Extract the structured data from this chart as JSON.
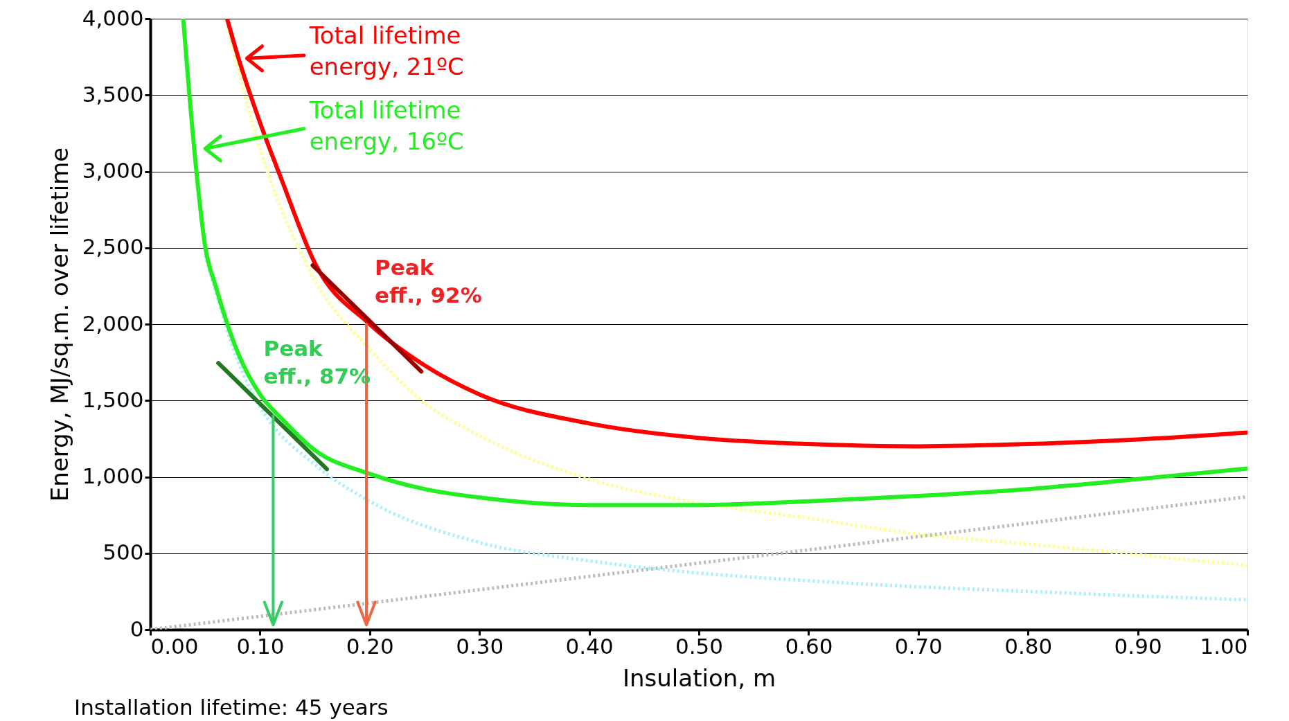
{
  "chart_data": {
    "type": "line",
    "xlabel": "Insulation, m",
    "ylabel": "Energy, MJ/sq.m. over lifetime",
    "xlim": [
      0,
      1
    ],
    "ylim": [
      0,
      4000
    ],
    "xticks": [
      {
        "value": 0,
        "label": "0.00"
      },
      {
        "value": 0.1,
        "label": "0.10"
      },
      {
        "value": 0.2,
        "label": "0.20"
      },
      {
        "value": 0.3,
        "label": "0.30"
      },
      {
        "value": 0.4,
        "label": "0.40"
      },
      {
        "value": 0.5,
        "label": "0.50"
      },
      {
        "value": 0.6,
        "label": "0.60"
      },
      {
        "value": 0.7,
        "label": "0.70"
      },
      {
        "value": 0.8,
        "label": "0.80"
      },
      {
        "value": 0.9,
        "label": "0.90"
      },
      {
        "value": 1,
        "label": "1.00"
      }
    ],
    "yticks": [
      0,
      500,
      {
        "value": 1000,
        "label": "1,000"
      },
      {
        "value": 1500,
        "label": "1,500"
      },
      {
        "value": 2000,
        "label": "2,000"
      },
      {
        "value": 2500,
        "label": "2,500"
      },
      {
        "value": 3000,
        "label": "3,000"
      },
      {
        "value": 3500,
        "label": "3,500"
      },
      {
        "value": 4000,
        "label": "4,000"
      }
    ],
    "grid": "y",
    "legend": "top left",
    "marker": "none",
    "series": [
      {
        "color": "#bbbbbb",
        "line_style": "dotted",
        "x": [
          0,
          1
        ],
        "values": [
          0,
          870
        ]
      },
      {
        "color": "#aaeeff",
        "line_style": "dotted",
        "x": [
          0.05,
          0.06,
          0.08,
          0.1,
          0.15,
          0.2,
          0.3,
          0.4,
          0.5,
          0.6,
          0.7,
          0.8,
          0.9,
          1.0
        ],
        "values": [
          2450,
          2200,
          1755,
          1460,
          1080,
          840,
          570,
          450,
          370,
          320,
          280,
          250,
          220,
          195
        ]
      },
      {
        "color": "#ffff88",
        "line_style": "dotted",
        "x": [
          0.07,
          0.1,
          0.15,
          0.2,
          0.25,
          0.3,
          0.4,
          0.5,
          0.6,
          0.7,
          0.8,
          0.9,
          1.0
        ],
        "values": [
          3950,
          3150,
          2290,
          1835,
          1485,
          1270,
          985,
          830,
          730,
          625,
          560,
          490,
          420
        ]
      },
      {
        "name": "Total lifetime energy, 16ºC",
        "color": "#22ee22",
        "line_style": "solid",
        "x": [
          0.03,
          0.04,
          0.05,
          0.06,
          0.08,
          0.1,
          0.12,
          0.15,
          0.2,
          0.25,
          0.3,
          0.4,
          0.5,
          0.6,
          0.7,
          0.8,
          0.9,
          1.0
        ],
        "values": [
          4000,
          3150,
          2510,
          2240,
          1810,
          1540,
          1380,
          1175,
          1020,
          920,
          865,
          815,
          815,
          840,
          875,
          920,
          985,
          1055
        ]
      },
      {
        "name": "Total lifetime energy, 21ºC",
        "color": "#ff0000",
        "line_style": "solid",
        "x": [
          0.07,
          0.08,
          0.1,
          0.12,
          0.15,
          0.2,
          0.25,
          0.3,
          0.4,
          0.5,
          0.6,
          0.7,
          0.8,
          0.9,
          1.0
        ],
        "values": [
          4000,
          3750,
          3320,
          2940,
          2400,
          2000,
          1730,
          1540,
          1350,
          1255,
          1215,
          1200,
          1215,
          1245,
          1290
        ]
      },
      {
        "color": "#990000",
        "line_style": "solid",
        "x": [
          0.148,
          0.247
        ],
        "values": [
          2385,
          1690
        ]
      },
      {
        "color": "#227722",
        "line_style": "solid",
        "x": [
          0.062,
          0.161
        ],
        "values": [
          1745,
          1050
        ]
      }
    ],
    "annotations": [
      {
        "text": "Peak eff., 92%",
        "x": 0.197,
        "y": 2000
      },
      {
        "text": "Peak eff., 87%",
        "x": 0.112,
        "y": 1400
      },
      "Installation lifetime: 45 years"
    ]
  }
}
